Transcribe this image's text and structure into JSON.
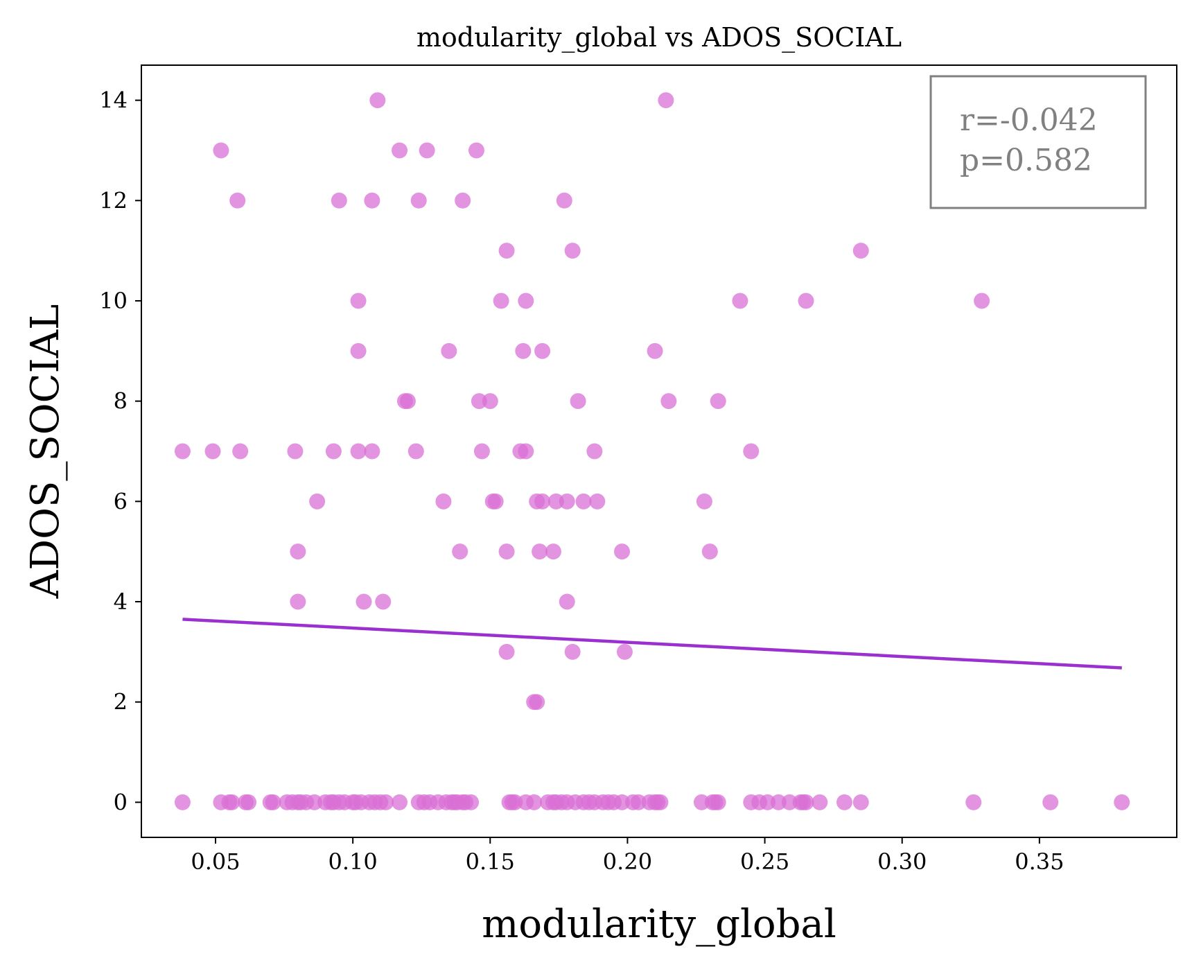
{
  "chart_data": {
    "type": "scatter",
    "title": "modularity_global vs ADOS_SOCIAL",
    "xlabel": "modularity_global",
    "ylabel": "ADOS_SOCIAL",
    "xlim": [
      0.023,
      0.4
    ],
    "ylim": [
      -0.7,
      14.7
    ],
    "xticks": [
      "0.05",
      "0.10",
      "0.15",
      "0.20",
      "0.25",
      "0.30",
      "0.35"
    ],
    "yticks": [
      "0",
      "2",
      "4",
      "6",
      "8",
      "10",
      "12",
      "14"
    ],
    "grid": false,
    "point_color": "#da70d6",
    "line_color": "#9b30d0",
    "stats_box": {
      "r": "r=-0.042",
      "p": "p=0.582",
      "position": "top-right"
    },
    "points": [
      [
        0.052,
        13
      ],
      [
        0.058,
        12
      ],
      [
        0.109,
        14
      ],
      [
        0.214,
        14
      ],
      [
        0.117,
        13
      ],
      [
        0.127,
        13
      ],
      [
        0.145,
        13
      ],
      [
        0.095,
        12
      ],
      [
        0.107,
        12
      ],
      [
        0.124,
        12
      ],
      [
        0.14,
        12
      ],
      [
        0.177,
        12
      ],
      [
        0.156,
        11
      ],
      [
        0.18,
        11
      ],
      [
        0.285,
        11
      ],
      [
        0.102,
        10
      ],
      [
        0.154,
        10
      ],
      [
        0.163,
        10
      ],
      [
        0.241,
        10
      ],
      [
        0.265,
        10
      ],
      [
        0.329,
        10
      ],
      [
        0.102,
        9
      ],
      [
        0.135,
        9
      ],
      [
        0.162,
        9
      ],
      [
        0.169,
        9
      ],
      [
        0.21,
        9
      ],
      [
        0.119,
        8
      ],
      [
        0.12,
        8
      ],
      [
        0.146,
        8
      ],
      [
        0.15,
        8
      ],
      [
        0.182,
        8
      ],
      [
        0.215,
        8
      ],
      [
        0.233,
        8
      ],
      [
        0.038,
        7
      ],
      [
        0.049,
        7
      ],
      [
        0.059,
        7
      ],
      [
        0.079,
        7
      ],
      [
        0.093,
        7
      ],
      [
        0.102,
        7
      ],
      [
        0.107,
        7
      ],
      [
        0.123,
        7
      ],
      [
        0.147,
        7
      ],
      [
        0.161,
        7
      ],
      [
        0.163,
        7
      ],
      [
        0.188,
        7
      ],
      [
        0.245,
        7
      ],
      [
        0.087,
        6
      ],
      [
        0.133,
        6
      ],
      [
        0.151,
        6
      ],
      [
        0.152,
        6
      ],
      [
        0.167,
        6
      ],
      [
        0.169,
        6
      ],
      [
        0.174,
        6
      ],
      [
        0.178,
        6
      ],
      [
        0.184,
        6
      ],
      [
        0.189,
        6
      ],
      [
        0.228,
        6
      ],
      [
        0.08,
        5
      ],
      [
        0.139,
        5
      ],
      [
        0.156,
        5
      ],
      [
        0.168,
        5
      ],
      [
        0.173,
        5
      ],
      [
        0.198,
        5
      ],
      [
        0.23,
        5
      ],
      [
        0.08,
        4
      ],
      [
        0.104,
        4
      ],
      [
        0.111,
        4
      ],
      [
        0.178,
        4
      ],
      [
        0.156,
        3
      ],
      [
        0.18,
        3
      ],
      [
        0.199,
        3
      ],
      [
        0.166,
        2
      ],
      [
        0.167,
        2
      ],
      [
        0.038,
        0
      ],
      [
        0.052,
        0
      ],
      [
        0.055,
        0
      ],
      [
        0.056,
        0
      ],
      [
        0.061,
        0
      ],
      [
        0.062,
        0
      ],
      [
        0.07,
        0
      ],
      [
        0.071,
        0
      ],
      [
        0.076,
        0
      ],
      [
        0.078,
        0
      ],
      [
        0.08,
        0
      ],
      [
        0.081,
        0
      ],
      [
        0.083,
        0
      ],
      [
        0.086,
        0
      ],
      [
        0.09,
        0
      ],
      [
        0.092,
        0
      ],
      [
        0.093,
        0
      ],
      [
        0.095,
        0
      ],
      [
        0.097,
        0
      ],
      [
        0.1,
        0
      ],
      [
        0.101,
        0
      ],
      [
        0.103,
        0
      ],
      [
        0.106,
        0
      ],
      [
        0.108,
        0
      ],
      [
        0.11,
        0
      ],
      [
        0.112,
        0
      ],
      [
        0.117,
        0
      ],
      [
        0.124,
        0
      ],
      [
        0.126,
        0
      ],
      [
        0.128,
        0
      ],
      [
        0.131,
        0
      ],
      [
        0.134,
        0
      ],
      [
        0.136,
        0
      ],
      [
        0.137,
        0
      ],
      [
        0.138,
        0
      ],
      [
        0.14,
        0
      ],
      [
        0.141,
        0
      ],
      [
        0.143,
        0
      ],
      [
        0.157,
        0
      ],
      [
        0.158,
        0
      ],
      [
        0.159,
        0
      ],
      [
        0.163,
        0
      ],
      [
        0.166,
        0
      ],
      [
        0.171,
        0
      ],
      [
        0.173,
        0
      ],
      [
        0.174,
        0
      ],
      [
        0.176,
        0
      ],
      [
        0.178,
        0
      ],
      [
        0.181,
        0
      ],
      [
        0.184,
        0
      ],
      [
        0.186,
        0
      ],
      [
        0.188,
        0
      ],
      [
        0.191,
        0
      ],
      [
        0.193,
        0
      ],
      [
        0.195,
        0
      ],
      [
        0.198,
        0
      ],
      [
        0.202,
        0
      ],
      [
        0.204,
        0
      ],
      [
        0.208,
        0
      ],
      [
        0.21,
        0
      ],
      [
        0.211,
        0
      ],
      [
        0.212,
        0
      ],
      [
        0.227,
        0
      ],
      [
        0.231,
        0
      ],
      [
        0.232,
        0
      ],
      [
        0.233,
        0
      ],
      [
        0.245,
        0
      ],
      [
        0.248,
        0
      ],
      [
        0.251,
        0
      ],
      [
        0.255,
        0
      ],
      [
        0.259,
        0
      ],
      [
        0.263,
        0
      ],
      [
        0.264,
        0
      ],
      [
        0.265,
        0
      ],
      [
        0.27,
        0
      ],
      [
        0.279,
        0
      ],
      [
        0.285,
        0
      ],
      [
        0.326,
        0
      ],
      [
        0.354,
        0
      ],
      [
        0.38,
        0
      ]
    ],
    "trend_line": {
      "x": [
        0.038,
        0.38
      ],
      "y": [
        3.65,
        2.68
      ]
    }
  }
}
